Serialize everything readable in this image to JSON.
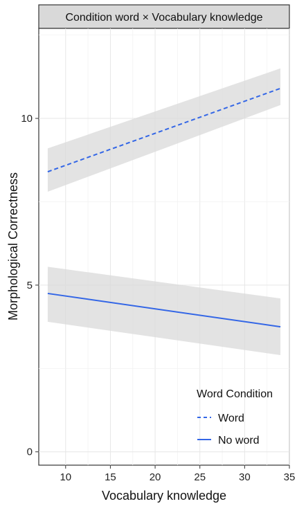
{
  "chart_data": {
    "type": "line",
    "title": "Condition word × Vocabulary knowledge",
    "xlabel": "Vocabulary knowledge",
    "ylabel": "Morphological Correctness",
    "xlim": [
      7,
      35
    ],
    "ylim": [
      -0.4,
      12.7
    ],
    "xticks": [
      "10",
      "15",
      "20",
      "25",
      "30",
      "35"
    ],
    "yticks": [
      "0",
      "5",
      "10"
    ],
    "grid": true,
    "legend_title": "Word Condition",
    "legend_position": "bottom-right",
    "series": [
      {
        "name": "Word",
        "linestyle": "dashed",
        "color": "#3366e6",
        "x": [
          8,
          34
        ],
        "y": [
          8.4,
          10.9
        ],
        "ci_lower": [
          7.8,
          10.4
        ],
        "ci_upper": [
          9.1,
          11.5
        ]
      },
      {
        "name": "No word",
        "linestyle": "solid",
        "color": "#3366e6",
        "x": [
          8,
          34
        ],
        "y": [
          4.75,
          3.75
        ],
        "ci_lower": [
          3.9,
          2.9
        ],
        "ci_upper": [
          5.55,
          4.6
        ]
      }
    ],
    "ribbon_color": "#d9d9d9"
  }
}
